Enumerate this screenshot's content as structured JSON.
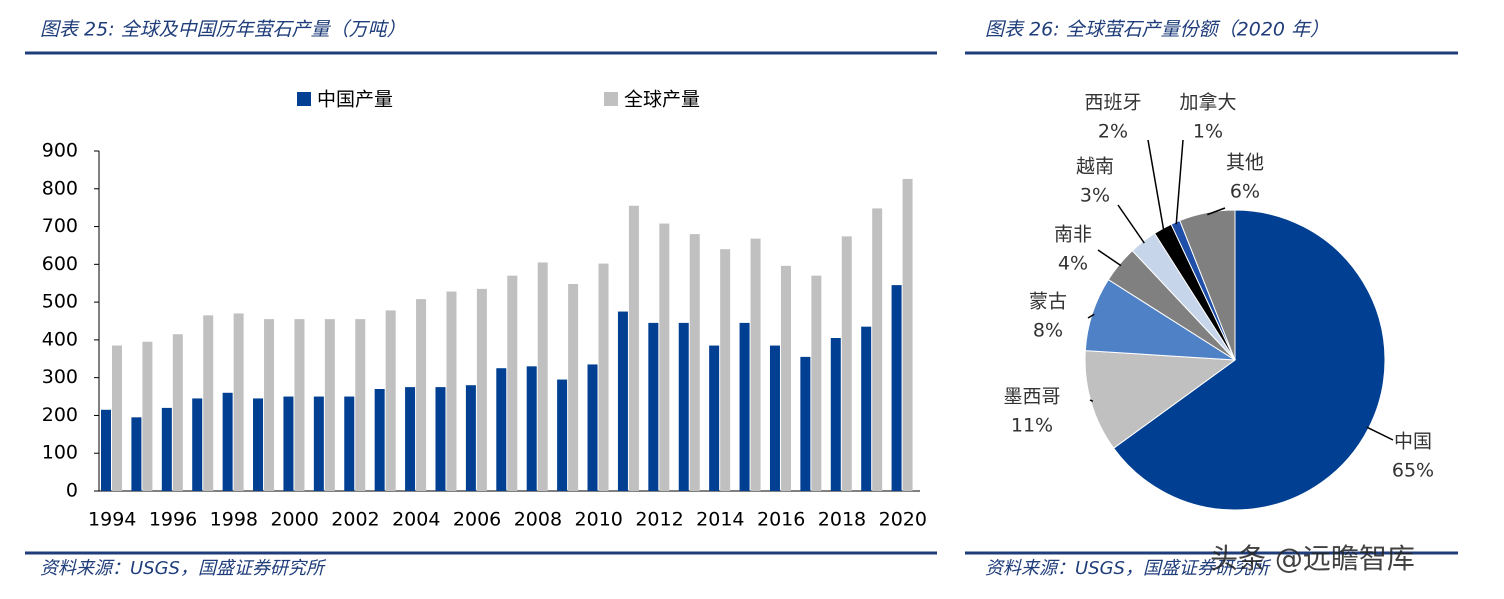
{
  "chart_data": [
    {
      "type": "bar",
      "title": "图表 25:  全球及中国历年萤石产量（万吨）",
      "categories": [
        "1994",
        null,
        "1996",
        null,
        "1998",
        null,
        "2000",
        null,
        "2002",
        null,
        "2004",
        null,
        "2006",
        null,
        "2008",
        null,
        "2010",
        null,
        "2012",
        null,
        "2014",
        null,
        "2016",
        null,
        "2018",
        null,
        "2020"
      ],
      "series": [
        {
          "name": "中国产量",
          "color": "#003f91",
          "values": [
            215,
            195,
            220,
            245,
            260,
            245,
            250,
            250,
            250,
            270,
            275,
            275,
            280,
            325,
            330,
            295,
            335,
            475,
            445,
            445,
            385,
            445,
            385,
            355,
            405,
            435,
            545
          ]
        },
        {
          "name": "全球产量",
          "color": "#c0c0c0",
          "values": [
            385,
            395,
            415,
            465,
            470,
            455,
            455,
            455,
            455,
            478,
            508,
            528,
            535,
            570,
            605,
            548,
            602,
            755,
            708,
            680,
            640,
            668,
            596,
            570,
            674,
            748,
            826
          ]
        }
      ],
      "ylim": [
        0,
        900
      ],
      "yticks": [
        0,
        100,
        200,
        300,
        400,
        500,
        600,
        700,
        800,
        900
      ],
      "source": "资料来源：USGS，国盛证券研究所"
    },
    {
      "type": "pie",
      "title": "图表 26:  全球萤石产量份额（2020 年）",
      "categories": [
        "中国",
        "墨西哥",
        "蒙古",
        "南非",
        "越南",
        "西班牙",
        "加拿大",
        "其他"
      ],
      "values": [
        65,
        11,
        8,
        4,
        3,
        2,
        1,
        6
      ],
      "value_labels": [
        "65%",
        "11%",
        "8%",
        "4%",
        "3%",
        "2%",
        "1%",
        "6%"
      ],
      "colors": [
        "#003f91",
        "#c0c0c0",
        "#4f81c7",
        "#808080",
        "#c6d5ea",
        "#000000",
        "#1f4fa8",
        "#808080"
      ],
      "source": "资料来源：USGS，国盛证券研究所"
    }
  ],
  "watermark": "头条 @远瞻智库"
}
